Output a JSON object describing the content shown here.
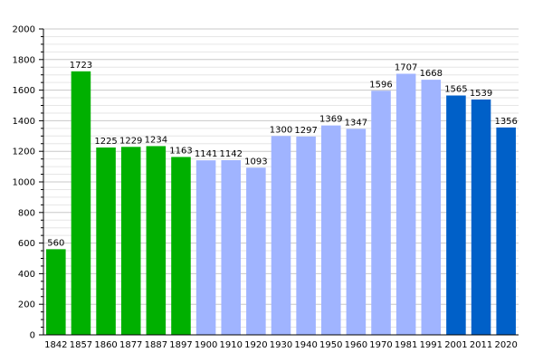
{
  "chart_data": {
    "type": "bar",
    "title": "",
    "xlabel": "",
    "ylabel": "",
    "ylim": [
      0,
      2000
    ],
    "yticks": [
      0,
      200,
      400,
      600,
      800,
      1000,
      1200,
      1400,
      1600,
      1800,
      2000
    ],
    "grid": true,
    "legend": "none",
    "categories": [
      "1842",
      "1857",
      "1860",
      "1877",
      "1887",
      "1897",
      "1900",
      "1910",
      "1920",
      "1930",
      "1940",
      "1950",
      "1960",
      "1970",
      "1981",
      "1991",
      "2001",
      "2011",
      "2020"
    ],
    "values": [
      560,
      1723,
      1225,
      1229,
      1234,
      1163,
      1141,
      1142,
      1093,
      1300,
      1297,
      1369,
      1347,
      1596,
      1707,
      1668,
      1565,
      1539,
      1356
    ],
    "colors": {
      "early": "#00b000",
      "middle": "#a0b4ff",
      "recent": "#0060c8"
    },
    "bar_groups": [
      "early",
      "early",
      "early",
      "early",
      "early",
      "early",
      "middle",
      "middle",
      "middle",
      "middle",
      "middle",
      "middle",
      "middle",
      "middle",
      "middle",
      "middle",
      "recent",
      "recent",
      "recent"
    ]
  }
}
